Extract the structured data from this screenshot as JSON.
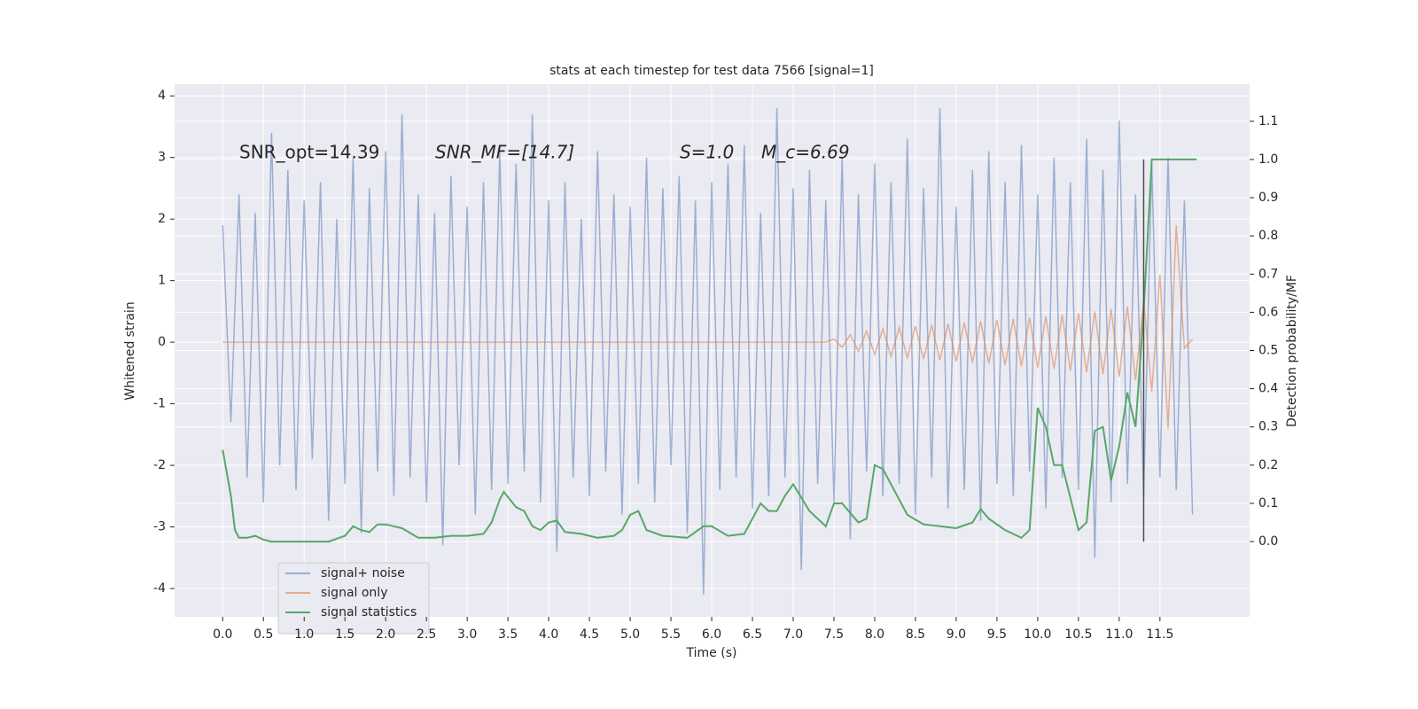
{
  "chart_data": {
    "type": "line",
    "title": "stats at each timestep for test data 7566 [signal=1]",
    "xlabel": "Time (s)",
    "ylabel": "Whitened strain",
    "y2label": "Detection probability/MF",
    "annotations": [
      "SNR_opt=14.39",
      "SNR_MF=[14.7]",
      "S=1.0",
      "M_c=6.69"
    ],
    "xlim": [
      -0.59,
      12.6
    ],
    "ylim": [
      -4.46,
      4.19
    ],
    "y2lim": [
      -0.197,
      1.197
    ],
    "xticks": [
      {
        "value": 0,
        "label": "0.0"
      },
      {
        "value": 0.5,
        "label": "0.5"
      },
      {
        "value": 1,
        "label": "1.0"
      },
      {
        "value": 1.5,
        "label": "1.5"
      },
      {
        "value": 2,
        "label": "2.0"
      },
      {
        "value": 2.5,
        "label": "2.5"
      },
      {
        "value": 3,
        "label": "3.0"
      },
      {
        "value": 3.5,
        "label": "3.5"
      },
      {
        "value": 4,
        "label": "4.0"
      },
      {
        "value": 4.5,
        "label": "4.5"
      },
      {
        "value": 5,
        "label": "5.0"
      },
      {
        "value": 5.5,
        "label": "5.5"
      },
      {
        "value": 6,
        "label": "6.0"
      },
      {
        "value": 6.5,
        "label": "6.5"
      },
      {
        "value": 7,
        "label": "7.0"
      },
      {
        "value": 7.5,
        "label": "7.5"
      },
      {
        "value": 8,
        "label": "8.0"
      },
      {
        "value": 8.5,
        "label": "8.5"
      },
      {
        "value": 9,
        "label": "9.0"
      },
      {
        "value": 9.5,
        "label": "9.5"
      },
      {
        "value": 10,
        "label": "10.0"
      },
      {
        "value": 10.5,
        "label": "10.5"
      },
      {
        "value": 11,
        "label": "11.0"
      },
      {
        "value": 11.5,
        "label": "11.5"
      }
    ],
    "yticks": [
      -4,
      -3,
      -2,
      -1,
      0,
      1,
      2,
      3,
      4
    ],
    "y2ticks": [
      {
        "value": 0,
        "label": "0.0"
      },
      {
        "value": 0.1,
        "label": "0.1"
      },
      {
        "value": 0.2,
        "label": "0.2"
      },
      {
        "value": 0.3,
        "label": "0.3"
      },
      {
        "value": 0.4,
        "label": "0.4"
      },
      {
        "value": 0.5,
        "label": "0.5"
      },
      {
        "value": 0.6,
        "label": "0.6"
      },
      {
        "value": 0.7,
        "label": "0.7"
      },
      {
        "value": 0.8,
        "label": "0.8"
      },
      {
        "value": 0.9,
        "label": "0.9"
      },
      {
        "value": 1,
        "label": "1.0"
      },
      {
        "value": 1.1,
        "label": "1.1"
      }
    ],
    "grid": true,
    "legend": "lower left",
    "x": [
      0,
      0.1,
      0.2,
      0.3,
      0.4,
      0.5,
      0.6,
      0.7,
      0.8,
      0.9,
      1,
      1.1,
      1.2,
      1.3,
      1.4,
      1.5,
      1.6,
      1.7,
      1.8,
      1.9,
      2,
      2.1,
      2.2,
      2.3,
      2.4,
      2.5,
      2.6,
      2.7,
      2.8,
      2.9,
      3,
      3.1,
      3.2,
      3.3,
      3.4,
      3.5,
      3.6,
      3.7,
      3.8,
      3.9,
      4,
      4.1,
      4.2,
      4.3,
      4.4,
      4.5,
      4.6,
      4.7,
      4.8,
      4.9,
      5,
      5.1,
      5.2,
      5.3,
      5.4,
      5.5,
      5.6,
      5.7,
      5.8,
      5.9,
      6,
      6.1,
      6.2,
      6.3,
      6.4,
      6.5,
      6.6,
      6.7,
      6.8,
      6.9,
      7,
      7.1,
      7.2,
      7.3,
      7.4,
      7.5,
      7.6,
      7.7,
      7.8,
      7.9,
      8,
      8.1,
      8.2,
      8.3,
      8.4,
      8.5,
      8.6,
      8.7,
      8.8,
      8.9,
      9,
      9.1,
      9.2,
      9.3,
      9.4,
      9.5,
      9.6,
      9.7,
      9.8,
      9.9,
      10,
      10.1,
      10.2,
      10.3,
      10.4,
      10.5,
      10.6,
      10.7,
      10.8,
      10.9,
      11,
      11.1,
      11.2,
      11.3,
      11.4,
      11.5,
      11.6,
      11.7,
      11.8,
      11.9
    ],
    "series": [
      {
        "name": "signal+ noise",
        "color": "#4c72b0",
        "values": [
          1.9,
          -1.3,
          2.4,
          -2.2,
          2.1,
          -2.6,
          3.4,
          -2.0,
          2.8,
          -2.4,
          2.3,
          -1.9,
          2.6,
          -2.9,
          2.0,
          -2.3,
          3.0,
          -3.1,
          2.5,
          -2.1,
          3.1,
          -2.5,
          3.7,
          -2.2,
          2.4,
          -2.6,
          2.1,
          -3.3,
          2.7,
          -2.0,
          2.2,
          -2.8,
          2.6,
          -2.4,
          3.1,
          -2.3,
          2.9,
          -2.1,
          3.7,
          -2.6,
          2.3,
          -3.4,
          2.6,
          -2.2,
          2.0,
          -2.5,
          3.1,
          -2.1,
          2.4,
          -2.8,
          2.2,
          -2.3,
          3.0,
          -2.6,
          2.5,
          -2.0,
          2.7,
          -3.1,
          2.3,
          -4.1,
          2.6,
          -2.4,
          2.9,
          -2.2,
          3.2,
          -2.7,
          2.1,
          -2.5,
          3.8,
          -2.2,
          2.5,
          -3.7,
          2.8,
          -2.3,
          2.3,
          -2.6,
          3.0,
          -3.2,
          2.4,
          -2.1,
          2.9,
          -2.5,
          2.6,
          -2.3,
          3.3,
          -2.8,
          2.5,
          -2.2,
          3.8,
          -2.7,
          2.2,
          -2.4,
          2.8,
          -2.9,
          3.1,
          -2.3,
          2.6,
          -2.5,
          3.2,
          -2.1,
          2.4,
          -2.7,
          3.0,
          -2.2,
          2.6,
          -2.4,
          3.3,
          -3.5,
          2.8,
          -2.6,
          3.6,
          -2.3,
          2.4,
          -2.5,
          2.9,
          -2.2,
          3.0,
          -2.4,
          2.3,
          -2.8
        ]
      },
      {
        "name": "signal only",
        "color": "#dd8452",
        "values": [
          0,
          0,
          0,
          0,
          0,
          0,
          0,
          0,
          0,
          0,
          0,
          0,
          0,
          0,
          0,
          0,
          0,
          0,
          0,
          0,
          0,
          0,
          0,
          0,
          0,
          0,
          0,
          0,
          0,
          0,
          0,
          0,
          0,
          0,
          0,
          0,
          0,
          0,
          0,
          0,
          0,
          0,
          0,
          0,
          0,
          0,
          0,
          0,
          0,
          0,
          0,
          0,
          0,
          0,
          0,
          0,
          0,
          0,
          0,
          0,
          0,
          0,
          0,
          0,
          0,
          0,
          0,
          0,
          0,
          0,
          0,
          0,
          0,
          0,
          0,
          0.05,
          -0.08,
          0.12,
          -0.15,
          0.18,
          -0.2,
          0.22,
          -0.23,
          0.24,
          -0.25,
          0.26,
          -0.27,
          0.28,
          -0.29,
          0.3,
          -0.31,
          0.32,
          -0.33,
          0.34,
          -0.35,
          0.36,
          -0.37,
          0.38,
          -0.39,
          0.4,
          -0.41,
          0.42,
          -0.43,
          0.45,
          -0.46,
          0.47,
          -0.49,
          0.5,
          -0.52,
          0.54,
          -0.56,
          0.58,
          -0.62,
          0.68,
          -0.8,
          1.1,
          -1.4,
          1.9,
          -0.1,
          0.05
        ]
      },
      {
        "name": "signal statistics",
        "color": "#55a868",
        "axis": "y2",
        "x": [
          0,
          0.1,
          0.15,
          0.2,
          0.3,
          0.4,
          0.5,
          0.6,
          0.8,
          1,
          1.2,
          1.3,
          1.5,
          1.6,
          1.7,
          1.8,
          1.9,
          2,
          2.2,
          2.4,
          2.6,
          2.8,
          3,
          3.2,
          3.3,
          3.4,
          3.45,
          3.6,
          3.7,
          3.8,
          3.9,
          4,
          4.1,
          4.2,
          4.4,
          4.6,
          4.8,
          4.9,
          5,
          5.1,
          5.2,
          5.4,
          5.7,
          5.9,
          6,
          6.2,
          6.4,
          6.5,
          6.6,
          6.7,
          6.8,
          6.9,
          7,
          7.2,
          7.4,
          7.5,
          7.6,
          7.8,
          7.9,
          8,
          8.1,
          8.4,
          8.6,
          8.8,
          9,
          9.2,
          9.3,
          9.4,
          9.6,
          9.8,
          9.9,
          10,
          10.1,
          10.2,
          10.3,
          10.5,
          10.6,
          10.7,
          10.8,
          10.9,
          11,
          11.1,
          11.2,
          11.3,
          11.4,
          11.5,
          11.95
        ],
        "values": [
          0.24,
          0.12,
          0.03,
          0.01,
          0.01,
          0.015,
          0.005,
          0,
          0,
          0,
          0,
          0,
          0.015,
          0.04,
          0.03,
          0.025,
          0.045,
          0.045,
          0.035,
          0.01,
          0.01,
          0.015,
          0.015,
          0.02,
          0.05,
          0.11,
          0.13,
          0.09,
          0.08,
          0.04,
          0.03,
          0.05,
          0.055,
          0.025,
          0.02,
          0.01,
          0.015,
          0.03,
          0.07,
          0.08,
          0.03,
          0.015,
          0.01,
          0.04,
          0.04,
          0.015,
          0.02,
          0.06,
          0.1,
          0.08,
          0.08,
          0.12,
          0.15,
          0.08,
          0.04,
          0.1,
          0.1,
          0.05,
          0.06,
          0.2,
          0.19,
          0.07,
          0.045,
          0.04,
          0.035,
          0.05,
          0.085,
          0.06,
          0.03,
          0.01,
          0.03,
          0.35,
          0.3,
          0.2,
          0.2,
          0.03,
          0.05,
          0.29,
          0.3,
          0.16,
          0.25,
          0.39,
          0.3,
          0.6,
          1,
          1,
          1
        ]
      }
    ],
    "vline": {
      "x": 11.3,
      "y2": [
        0,
        1
      ],
      "color": "#4d4d4d"
    }
  }
}
